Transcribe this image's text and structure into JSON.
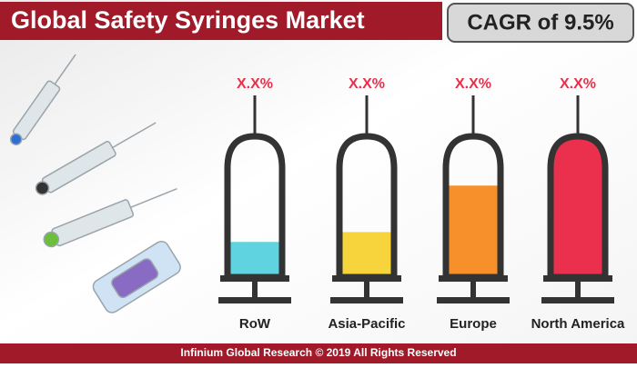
{
  "header": {
    "title": "Global Safety Syringes Market",
    "badge": "CAGR of 9.5%"
  },
  "syringes": [
    {
      "label": "RoW",
      "value_label": "X.X%",
      "fill_percent": 25,
      "color": "#5fd3e0"
    },
    {
      "label": "Asia-Pacific",
      "value_label": "X.X%",
      "fill_percent": 32,
      "color": "#f7d33c"
    },
    {
      "label": "Europe",
      "value_label": "X.X%",
      "fill_percent": 65,
      "color": "#f7902a"
    },
    {
      "label": "North America",
      "value_label": "X.X%",
      "fill_percent": 100,
      "color": "#ea304c"
    }
  ],
  "footer": {
    "text": "Infinium Global Research © 2019 All Rights Reserved"
  }
}
